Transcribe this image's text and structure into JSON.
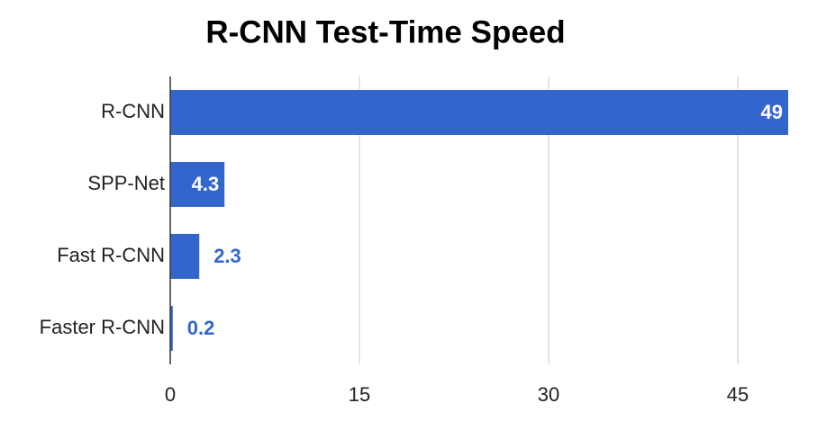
{
  "chart_data": {
    "type": "barh",
    "title": "R-CNN Test-Time Speed",
    "categories": [
      "R-CNN",
      "SPP-Net",
      "Fast R-CNN",
      "Faster R-CNN"
    ],
    "values": [
      49,
      4.3,
      2.3,
      0.2
    ],
    "color": "#3366cc",
    "xlim": [
      0,
      49
    ],
    "xticks": [
      0,
      15,
      30,
      45
    ],
    "grid": true
  }
}
